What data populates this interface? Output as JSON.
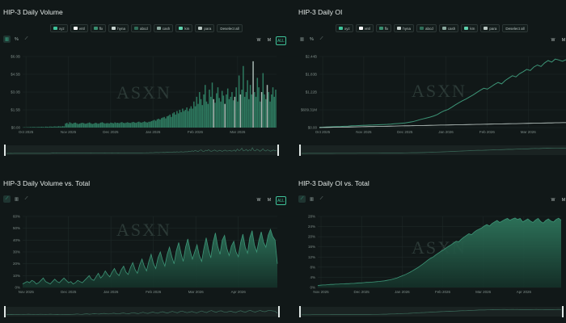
{
  "colors": {
    "bg": "#111818",
    "grid": "#1e2827",
    "axis_text": "#7f8d89",
    "accent": "#3fc39a",
    "bar": "#2e7a60",
    "bar_hi": "#a8b8b2",
    "area_line": "#3d9577",
    "navigator_bg": "#1a2322",
    "navigator_line": "#3a6b5a"
  },
  "watermark": "ASXN",
  "legend_items": [
    {
      "label": "xyz",
      "color": "#3fc39a"
    },
    {
      "label": "vntl",
      "color": "#ffffff"
    },
    {
      "label": "flx",
      "color": "#3a8f70"
    },
    {
      "label": "hyna",
      "color": "#c8d4d0"
    },
    {
      "label": "abcd",
      "color": "#2f6d58"
    },
    {
      "label": "cash",
      "color": "#8aa89e"
    },
    {
      "label": "km",
      "color": "#5fd1ad"
    },
    {
      "label": "para",
      "color": "#b9c6c2"
    },
    {
      "label": "Deselect all",
      "color": ""
    }
  ],
  "tools": [
    {
      "icon": "bar-chart-icon",
      "glyph": "▥"
    },
    {
      "icon": "percent-icon",
      "glyph": "%"
    },
    {
      "icon": "line-chart-icon",
      "glyph": "⟋"
    }
  ],
  "ranges": [
    "W",
    "M",
    "ALL"
  ],
  "panels": [
    {
      "id": "vol",
      "title": "HIP-3 Daily Volume",
      "legend": true,
      "tools_count": 3,
      "ranges": true
    },
    {
      "id": "oi",
      "title": "HIP-3 Daily OI",
      "legend": true,
      "tools_count": 3,
      "ranges": true
    },
    {
      "id": "volpct",
      "title": "HIP-3 Daily Volume vs. Total",
      "legend": false,
      "tools_count": 3,
      "ranges": true
    },
    {
      "id": "oipct",
      "title": "HIP-3 Daily OI vs. Total",
      "legend": false,
      "tools_count": 3,
      "ranges": true
    }
  ],
  "chart_data": [
    {
      "id": "vol",
      "type": "bar",
      "title": "HIP-3 Daily Volume",
      "xlabel": "",
      "ylabel": "",
      "x_ticks": [
        "Oct 2025",
        "Nov 2025",
        "Dec 2025",
        "Jan 2026",
        "Feb 2026",
        "Mar 2026"
      ],
      "y_ticks": [
        "$0.00",
        "$1.5B",
        "$3.0B",
        "$4.5B",
        "$6.0B"
      ],
      "ylim": [
        0,
        6.0
      ],
      "x_start": "2025-10-01",
      "x_end": "2026-03-31",
      "grid": true,
      "unit": "$B",
      "values": [
        0.02,
        0.03,
        0.02,
        0.04,
        0.03,
        0.05,
        0.04,
        0.06,
        0.05,
        0.04,
        0.05,
        0.06,
        0.05,
        0.07,
        0.06,
        0.05,
        0.08,
        0.07,
        0.06,
        0.09,
        0.08,
        0.07,
        0.1,
        0.09,
        0.08,
        0.11,
        0.1,
        0.09,
        0.12,
        0.1,
        0.35,
        0.4,
        0.3,
        0.45,
        0.38,
        0.33,
        0.4,
        0.42,
        0.36,
        0.3,
        0.34,
        0.38,
        0.41,
        0.37,
        0.32,
        0.35,
        0.39,
        0.43,
        0.36,
        0.31,
        0.34,
        0.4,
        0.38,
        0.33,
        0.36,
        0.42,
        0.45,
        0.39,
        0.35,
        0.37,
        0.38,
        0.35,
        0.42,
        0.4,
        0.36,
        0.44,
        0.39,
        0.41,
        0.37,
        0.43,
        0.46,
        0.4,
        0.38,
        0.42,
        0.45,
        0.41,
        0.39,
        0.44,
        0.48,
        0.43,
        0.4,
        0.46,
        0.5,
        0.44,
        0.42,
        0.47,
        0.52,
        0.46,
        0.43,
        0.49,
        0.5,
        0.55,
        0.6,
        0.65,
        0.58,
        0.7,
        0.75,
        0.68,
        0.8,
        0.85,
        0.9,
        0.78,
        0.95,
        1.0,
        1.1,
        0.9,
        1.2,
        1.3,
        1.1,
        1.4,
        1.2,
        1.5,
        1.3,
        1.6,
        1.4,
        1.5,
        1.7,
        1.4,
        1.6,
        1.8,
        1.6,
        2.2,
        1.8,
        2.6,
        2.0,
        3.0,
        2.4,
        1.9,
        2.8,
        3.6,
        2.2,
        2.0,
        3.2,
        2.6,
        3.8,
        2.4,
        2.1,
        2.9,
        3.4,
        2.5,
        2.2,
        3.1,
        2.7,
        2.0,
        2.8,
        3.3,
        2.4,
        2.6,
        3.0,
        2.3,
        2.6,
        3.4,
        2.2,
        4.4,
        2.8,
        3.2,
        5.2,
        2.6,
        3.0,
        4.0,
        2.4,
        3.6,
        2.8,
        5.6,
        3.0,
        2.6,
        4.2,
        3.4,
        2.2,
        3.0,
        4.6,
        2.8,
        2.4,
        3.6,
        3.0,
        2.2,
        2.8,
        3.4,
        2.6,
        3.2
      ],
      "highlight_bars": [
        135,
        143,
        150,
        154,
        163,
        169,
        173
      ]
    },
    {
      "id": "oi",
      "type": "line",
      "title": "HIP-3 Daily OI",
      "xlabel": "",
      "ylabel": "",
      "x_ticks": [
        "Oct 2025",
        "Nov 2025",
        "Dec 2025",
        "Jan 2026",
        "Feb 2026",
        "Mar 2026"
      ],
      "y_ticks": [
        "$0.00",
        "$609.31M",
        "$1.22B",
        "$1.83B",
        "$2.44B"
      ],
      "ylim": [
        0,
        2.44
      ],
      "grid": true,
      "unit": "$B",
      "series": [
        {
          "values": [
            0.01,
            0.015,
            0.02,
            0.025,
            0.03,
            0.035,
            0.04,
            0.045,
            0.05,
            0.06,
            0.065,
            0.07,
            0.075,
            0.08,
            0.085,
            0.09,
            0.095,
            0.1,
            0.105,
            0.11,
            0.12,
            0.13,
            0.14,
            0.15,
            0.16,
            0.18,
            0.2,
            0.23,
            0.27,
            0.3,
            0.33,
            0.36,
            0.4,
            0.45,
            0.52,
            0.58,
            0.62,
            0.7,
            0.78,
            0.85,
            0.92,
            0.98,
            1.05,
            1.12,
            1.2,
            1.28,
            1.35,
            1.32,
            1.4,
            1.48,
            1.55,
            1.5,
            1.62,
            1.7,
            1.78,
            1.74,
            1.85,
            1.92,
            2.0,
            1.96,
            2.08,
            2.15,
            2.1,
            2.22,
            2.3,
            2.25,
            2.35,
            2.32,
            2.28,
            2.33
          ]
        },
        {
          "values": [
            0.0,
            0.003,
            0.005,
            0.008,
            0.01,
            0.012,
            0.015,
            0.017,
            0.02,
            0.022,
            0.025,
            0.027,
            0.03,
            0.032,
            0.035,
            0.037,
            0.04,
            0.042,
            0.045,
            0.047,
            0.05,
            0.052,
            0.055,
            0.057,
            0.06,
            0.062,
            0.065,
            0.067,
            0.07,
            0.072,
            0.075,
            0.077,
            0.08,
            0.082,
            0.085,
            0.087,
            0.09,
            0.092,
            0.095,
            0.097,
            0.1,
            0.102,
            0.105,
            0.107,
            0.11,
            0.112,
            0.115,
            0.117,
            0.12,
            0.122,
            0.125,
            0.127,
            0.13,
            0.132,
            0.135,
            0.137,
            0.14,
            0.142,
            0.145,
            0.147,
            0.15,
            0.152,
            0.155,
            0.157,
            0.16,
            0.162,
            0.165,
            0.167,
            0.17,
            0.17
          ]
        }
      ]
    },
    {
      "id": "volpct",
      "type": "area",
      "title": "HIP-3 Daily Volume vs. Total",
      "xlabel": "",
      "ylabel": "",
      "x_ticks": [
        "Nov 2025",
        "Dec 2025",
        "Jan 2026",
        "Feb 2026",
        "Mar 2026",
        "Apr 2026"
      ],
      "y_ticks": [
        "0%",
        "10%",
        "20%",
        "30%",
        "40%",
        "50%",
        "60%"
      ],
      "ylim": [
        0,
        60
      ],
      "grid": true,
      "unit": "%",
      "values": [
        3,
        4,
        5,
        4,
        6,
        5,
        3,
        4,
        6,
        8,
        5,
        4,
        3,
        5,
        7,
        5,
        4,
        6,
        8,
        6,
        4,
        5,
        3,
        4,
        6,
        5,
        4,
        6,
        8,
        10,
        7,
        6,
        9,
        12,
        8,
        10,
        14,
        11,
        9,
        13,
        16,
        12,
        10,
        15,
        18,
        13,
        11,
        17,
        21,
        15,
        12,
        19,
        24,
        18,
        14,
        22,
        28,
        20,
        16,
        25,
        30,
        23,
        18,
        28,
        34,
        26,
        20,
        31,
        38,
        29,
        22,
        34,
        41,
        31,
        24,
        30,
        36,
        27,
        22,
        33,
        42,
        32,
        25,
        38,
        46,
        35,
        28,
        40,
        44,
        33,
        27,
        35,
        39,
        30,
        26,
        38,
        45,
        34,
        29,
        42,
        48,
        36,
        30,
        40,
        47,
        38,
        34,
        44,
        49,
        43,
        40,
        20
      ]
    },
    {
      "id": "oipct",
      "type": "area",
      "title": "HIP-3 Daily OI vs. Total",
      "xlabel": "",
      "ylabel": "",
      "x_ticks": [
        "Nov 2025",
        "Dec 2025",
        "Jan 2026",
        "Feb 2026",
        "Mar 2026",
        "Apr 2026"
      ],
      "y_ticks": [
        "0%",
        "4%",
        "8%",
        "12%",
        "16%",
        "20%",
        "24%",
        "28%"
      ],
      "ylim": [
        0,
        28
      ],
      "grid": true,
      "unit": "%",
      "values": [
        0.8,
        0.9,
        1.0,
        1.0,
        1.1,
        1.2,
        1.2,
        1.3,
        1.3,
        1.4,
        1.4,
        1.5,
        1.5,
        1.6,
        1.6,
        1.7,
        1.8,
        1.8,
        1.9,
        2.0,
        2.0,
        2.1,
        2.2,
        2.3,
        2.4,
        2.5,
        2.6,
        2.8,
        3.0,
        3.2,
        3.5,
        3.8,
        4.2,
        4.6,
        5.0,
        5.5,
        6.0,
        6.6,
        7.2,
        7.8,
        8.5,
        9.2,
        10.0,
        10.8,
        11.5,
        12.0,
        12.8,
        13.5,
        14.2,
        14.8,
        15.5,
        16.2,
        16.8,
        17.5,
        18.2,
        18.0,
        19.0,
        19.8,
        20.5,
        21.2,
        20.8,
        21.8,
        22.5,
        23.0,
        23.5,
        24.2,
        24.8,
        24.2,
        25.2,
        25.8,
        26.4,
        25.6,
        26.2,
        26.8,
        27.2,
        26.5,
        27.0,
        27.4,
        26.8,
        27.2,
        25.8,
        26.4,
        27.0,
        26.2,
        25.6,
        26.6,
        27.2,
        26.0,
        25.4,
        26.4,
        27.0,
        26.2,
        25.8,
        26.8,
        27.3,
        26.5
      ]
    }
  ]
}
